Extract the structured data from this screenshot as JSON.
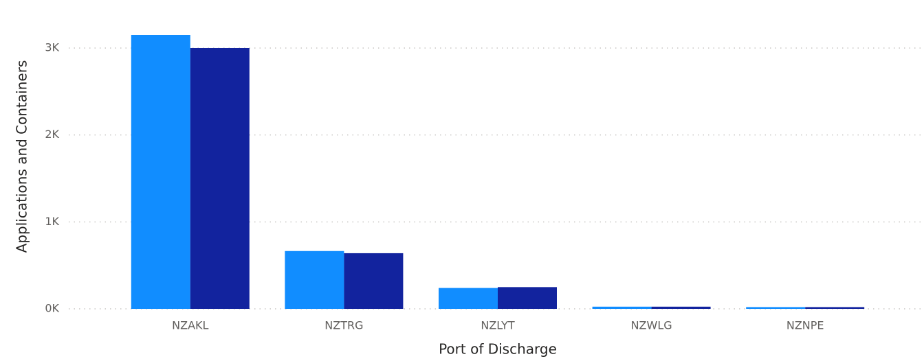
{
  "chart_data": {
    "type": "bar",
    "x_label": "Port of Discharge",
    "y_label": "Applications and Containers",
    "categories": [
      "NZAKL",
      "NZTRG",
      "NZLYT",
      "NZWLG",
      "NZNPE"
    ],
    "series": [
      {
        "color": "#118dff",
        "values": [
          3150,
          665,
          240,
          25,
          20
        ]
      },
      {
        "color": "#12239e",
        "values": [
          3000,
          640,
          250,
          25,
          20
        ]
      }
    ],
    "ylim": [
      0,
      3300
    ],
    "yticks": [
      {
        "value": 0,
        "label": "0K"
      },
      {
        "value": 1000,
        "label": "1K"
      },
      {
        "value": 2000,
        "label": "2K"
      },
      {
        "value": 3000,
        "label": "3K"
      }
    ],
    "grid": true
  }
}
